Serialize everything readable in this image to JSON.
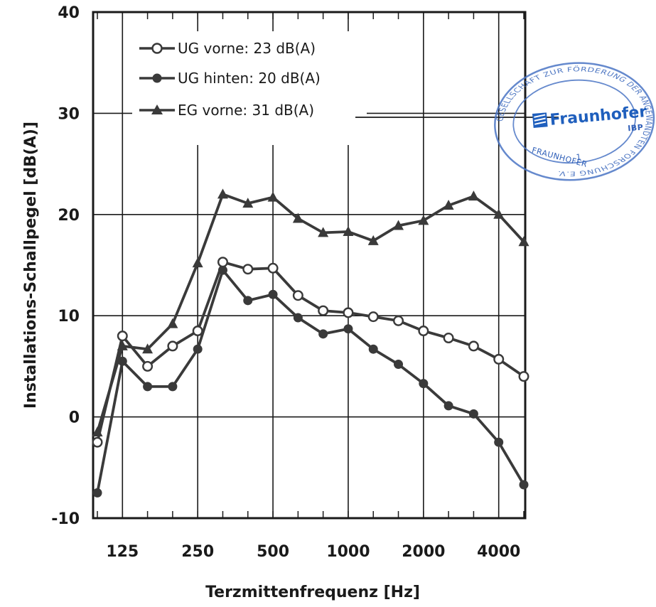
{
  "chart_data": {
    "type": "line",
    "xlabel": "Terzmittenfrequenz [Hz]",
    "ylabel": "Installations-Schallpegel [dB(A)]",
    "ylim": [
      -10,
      40
    ],
    "yticks": [
      "-10",
      "0",
      "10",
      "20",
      "30",
      "40"
    ],
    "x_scale": "log (third-octave bands)",
    "xticks": [
      "125",
      "250",
      "500",
      "1000",
      "2000",
      "4000"
    ],
    "x": [
      100,
      125,
      160,
      200,
      250,
      315,
      400,
      500,
      630,
      800,
      1000,
      1250,
      1600,
      2000,
      2500,
      3150,
      4000,
      5000
    ],
    "grid": true,
    "legend_position": "top-left",
    "series": [
      {
        "name": "UG vorne: 23 dB(A)",
        "marker": "open-circle",
        "color": "#3a3a3a",
        "values": [
          -2.5,
          8,
          5,
          7,
          8.5,
          15.3,
          14.6,
          14.7,
          12,
          10.5,
          10.3,
          9.9,
          9.5,
          8.5,
          7.8,
          7,
          5.7,
          4
        ]
      },
      {
        "name": "UG hinten: 20 dB(A)",
        "marker": "filled-circle",
        "color": "#3a3a3a",
        "values": [
          -7.5,
          5.5,
          3,
          3,
          6.7,
          14.5,
          11.5,
          12.1,
          9.8,
          8.2,
          8.7,
          6.7,
          5.2,
          3.3,
          1.1,
          0.3,
          -2.5,
          -6.7
        ]
      },
      {
        "name": "EG vorne: 31 dB(A)",
        "marker": "filled-triangle",
        "color": "#3a3a3a",
        "values": [
          -1.5,
          7,
          6.7,
          9.2,
          15.2,
          22,
          21.1,
          21.7,
          19.6,
          18.2,
          18.3,
          17.4,
          18.9,
          19.4,
          20.9,
          21.8,
          20,
          17.3
        ]
      }
    ]
  },
  "stamp": {
    "brand": "Fraunhofer",
    "unit": "IBP",
    "ring_text": "GESELLSCHAFT ZUR FÖRDERUNG DER ANGEWANDTEN FORSCHUNG E.V.",
    "inner_text": "FRAUNHOFER",
    "number": "1",
    "color": "#2f5fb8"
  }
}
